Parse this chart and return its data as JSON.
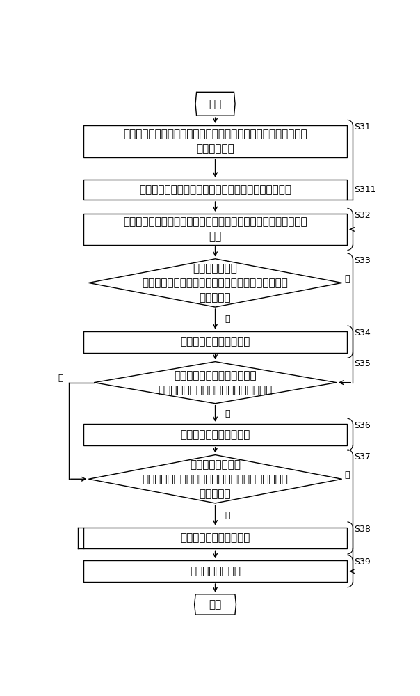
{
  "bg_color": "#ffffff",
  "box_edge_color": "#000000",
  "text_color": "#000000",
  "nodes": {
    "start_label": "开始",
    "end_label": "结束",
    "s31_label": "获取交易渠道发送的本行联行号，并根据本行联行号获取付款人和\n收款人的信息",
    "s311_label": "在获取不到收款人的信息时，确定支付路径为行内汇划",
    "s32_label": "若付款人的信息表征所述付款人对公汇款，则确定支付路径为行内\n汇划",
    "s33_label": "若付款人的信息\n表征付款人对私汇款，则根据收款人的信息判断收款\n人是否通存",
    "s34_label": "确定支付路径为行内转账",
    "s35_label": "根据收款人的信息判断收款人\n开户机构与汇出交易的执行机构是否相同",
    "s36_label": "确定支付路径为行内转账",
    "s37_label": "根据付款人的信息\n判断付款人的开户机构与汇出交易的执行机构是否同\n属一级机构",
    "s38_label": "确定支付路径为行内汇划",
    "s39_label": "进行业务逻辑报错"
  },
  "tags": {
    "s31": "S31",
    "s311": "S311",
    "s32": "S32",
    "s33": "S33",
    "s34": "S34",
    "s35": "S35",
    "s36": "S36",
    "s37": "S37",
    "s38": "S38",
    "s39": "S39"
  },
  "labels": {
    "yes": "是",
    "no": "否"
  }
}
